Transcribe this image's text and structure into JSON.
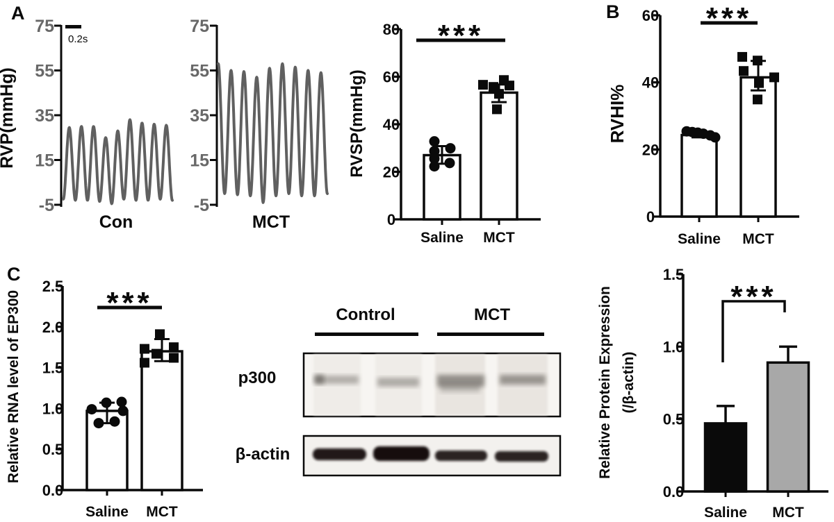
{
  "panel_labels": {
    "a": "A",
    "b": "B",
    "c": "C"
  },
  "colors": {
    "background": "#ffffff",
    "ink": "#0a0a0a",
    "trace": "#606060",
    "trace_tick_text": "#686868",
    "white_bar_fill": "#ffffff",
    "black_bar_fill": "#0a0a0a",
    "gray_bar_fill": "#a8a8a8",
    "blot_box_bg": "#f7f5f2",
    "blot_band": "#57524d",
    "actin_band": "#12100e"
  },
  "chart_data": [
    {
      "id": "trace-con",
      "type": "line",
      "panel": "A",
      "xlabel": "Con",
      "ylabel": "RVP(mmHg)",
      "ylim": [
        -5,
        75
      ],
      "yticks": [
        "75",
        "55",
        "35",
        "15",
        "-5"
      ],
      "scalebar_label": "0.2s",
      "wave": {
        "cycles": 9,
        "start_phase": 0,
        "peaks": [
          29.5,
          30,
          30,
          25,
          28,
          33,
          31.5,
          31,
          30.5
        ],
        "troughs": [
          -2.5,
          -3,
          -3,
          -3.5,
          -4.5,
          -2.5,
          -3,
          -3,
          -2.5,
          -3
        ]
      }
    },
    {
      "id": "trace-mct",
      "type": "line",
      "panel": "A",
      "xlabel": "MCT",
      "ylabel": "",
      "ylim": [
        -5,
        75
      ],
      "yticks": [
        "75",
        "55",
        "35",
        "15",
        "-5"
      ],
      "wave": {
        "cycles": 8.5,
        "start_phase": 0.5,
        "peaks": [
          58,
          55,
          54.5,
          52,
          56,
          58,
          56.5,
          55,
          54
        ],
        "troughs": [
          0,
          0,
          -0.5,
          -1,
          -4,
          -1,
          0,
          -1,
          -1,
          0
        ]
      }
    },
    {
      "id": "rvsp",
      "type": "bar",
      "panel": "A",
      "ylabel": "RVSP(mmHg)",
      "ylim": [
        0,
        80
      ],
      "yticks": [
        "0",
        "20",
        "40",
        "60",
        "80"
      ],
      "categories": [
        "Saline",
        "MCT"
      ],
      "significance": "***",
      "sig_style": "line",
      "series": [
        {
          "name": "Saline",
          "mean": 27,
          "err_low": 23.4,
          "err_high": 30.8,
          "marker": "circle",
          "fill": "#ffffff",
          "points": [
            [
              -11,
              32.8
            ],
            [
              -11,
              28.7
            ],
            [
              12,
              29.9
            ],
            [
              -11,
              25.5
            ],
            [
              11,
              23.7
            ],
            [
              -11,
              22.3
            ]
          ]
        },
        {
          "name": "MCT",
          "mean": 53.3,
          "err_low": 49.3,
          "err_high": 56.7,
          "marker": "square",
          "fill": "#ffffff",
          "points": [
            [
              7,
              58.6
            ],
            [
              -23,
              56.6
            ],
            [
              -8,
              55.7
            ],
            [
              15,
              56.3
            ],
            [
              0,
              52.8
            ],
            [
              -3,
              46.3
            ]
          ]
        }
      ]
    },
    {
      "id": "rvhi",
      "type": "bar",
      "panel": "B",
      "ylabel": "RVHI%",
      "ylim": [
        0,
        60
      ],
      "yticks": [
        "0",
        "20",
        "40",
        "60"
      ],
      "categories": [
        "Saline",
        "MCT"
      ],
      "significance": "***",
      "sig_style": "line",
      "series": [
        {
          "name": "Saline",
          "mean": 24.3,
          "err_low": 23.6,
          "err_high": 25.2,
          "marker": "circle",
          "fill": "#ffffff",
          "points": [
            [
              -18,
              25.4
            ],
            [
              -10,
              25.2
            ],
            [
              -2,
              25.0
            ],
            [
              6,
              24.7
            ],
            [
              16,
              24.2
            ],
            [
              23,
              23.6
            ]
          ]
        },
        {
          "name": "MCT",
          "mean": 41.5,
          "err_low": 37.6,
          "err_high": 46.4,
          "marker": "square",
          "fill": "#ffffff",
          "points": [
            [
              -23,
              47.6
            ],
            [
              -1,
              46.5
            ],
            [
              -21,
              43.4
            ],
            [
              23,
              41.5
            ],
            [
              1,
              39.8
            ],
            [
              -1,
              34.9
            ]
          ]
        }
      ]
    },
    {
      "id": "ep300-rna",
      "type": "bar",
      "panel": "C",
      "ylabel": "Relative RNA level of EP300",
      "ylim": [
        0,
        2.5
      ],
      "yticks": [
        "0.0",
        "0.5",
        "1.0",
        "1.5",
        "2.0",
        "2.5"
      ],
      "categories": [
        "Saline",
        "MCT"
      ],
      "significance": "***",
      "sig_style": "line",
      "series": [
        {
          "name": "Saline",
          "mean": 0.97,
          "err_low": 0.82,
          "err_high": 1.07,
          "marker": "circle",
          "fill": "#ffffff",
          "points": [
            [
              -1,
              1.07
            ],
            [
              21,
              1.08
            ],
            [
              -22,
              0.99
            ],
            [
              23,
              0.97
            ],
            [
              -12,
              0.82
            ],
            [
              11,
              0.84
            ]
          ]
        },
        {
          "name": "MCT",
          "mean": 1.7,
          "err_low": 1.58,
          "err_high": 1.85,
          "marker": "square",
          "fill": "#ffffff",
          "points": [
            [
              -3,
              1.91
            ],
            [
              -25,
              1.73
            ],
            [
              17,
              1.75
            ],
            [
              -8,
              1.67
            ],
            [
              17,
              1.62
            ],
            [
              -25,
              1.56
            ]
          ]
        }
      ]
    },
    {
      "id": "p300-protein",
      "type": "bar",
      "panel": "C",
      "ylabel": "Relative Protein Expression",
      "ylabel2": "(/β-actin)",
      "ylim": [
        0,
        1.5
      ],
      "yticks": [
        "0.0",
        "0.5",
        "1.0",
        "1.5"
      ],
      "categories": [
        "Saline",
        "MCT"
      ],
      "significance": "***",
      "sig_style": "bracket",
      "series": [
        {
          "name": "Saline",
          "mean": 0.47,
          "err_high": 0.59,
          "fill": "#0a0a0a"
        },
        {
          "name": "MCT",
          "mean": 0.89,
          "err_high": 1.0,
          "fill": "#a8a8a8"
        }
      ]
    }
  ],
  "blot": {
    "group_labels": [
      "Control",
      "MCT"
    ],
    "rows": [
      {
        "label": "p300",
        "band_intensities": [
          0.4,
          0.42,
          0.6,
          0.55
        ]
      },
      {
        "label": "β-actin",
        "band_intensities": [
          0.95,
          1.0,
          0.9,
          0.9
        ]
      }
    ]
  }
}
